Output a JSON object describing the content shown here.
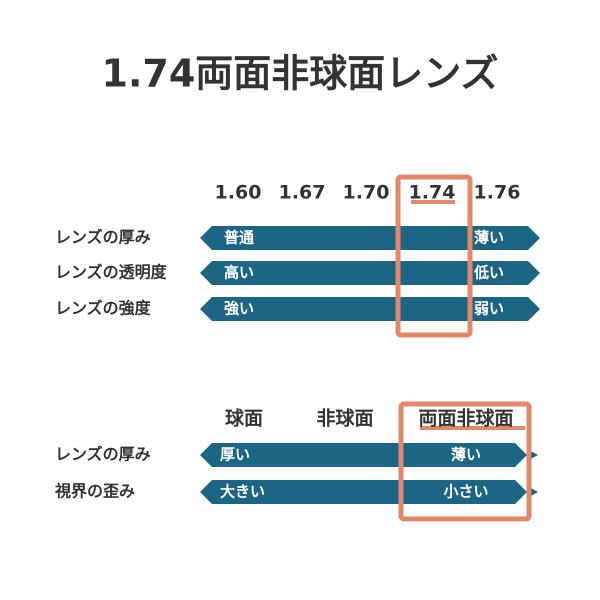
{
  "title": "1.74両面非球面レンズ",
  "index_comparison": {
    "columns": [
      "1.60",
      "1.67",
      "1.70",
      "1.74",
      "1.76"
    ],
    "rows": [
      {
        "label": "レンズの厚み",
        "left": "普通",
        "right": "薄い"
      },
      {
        "label": "レンズの透明度",
        "left": "高い",
        "right": "低い"
      },
      {
        "label": "レンズの強度",
        "left": "強い",
        "right": "弱い"
      }
    ]
  },
  "design_comparison": {
    "columns": [
      "球面",
      "非球面",
      "両面非球面"
    ],
    "rows": [
      {
        "label": "レンズの厚み",
        "left": "厚い",
        "right": "薄い"
      },
      {
        "label": "視界の歪み",
        "left": "大きい",
        "right": "小さい"
      }
    ]
  }
}
